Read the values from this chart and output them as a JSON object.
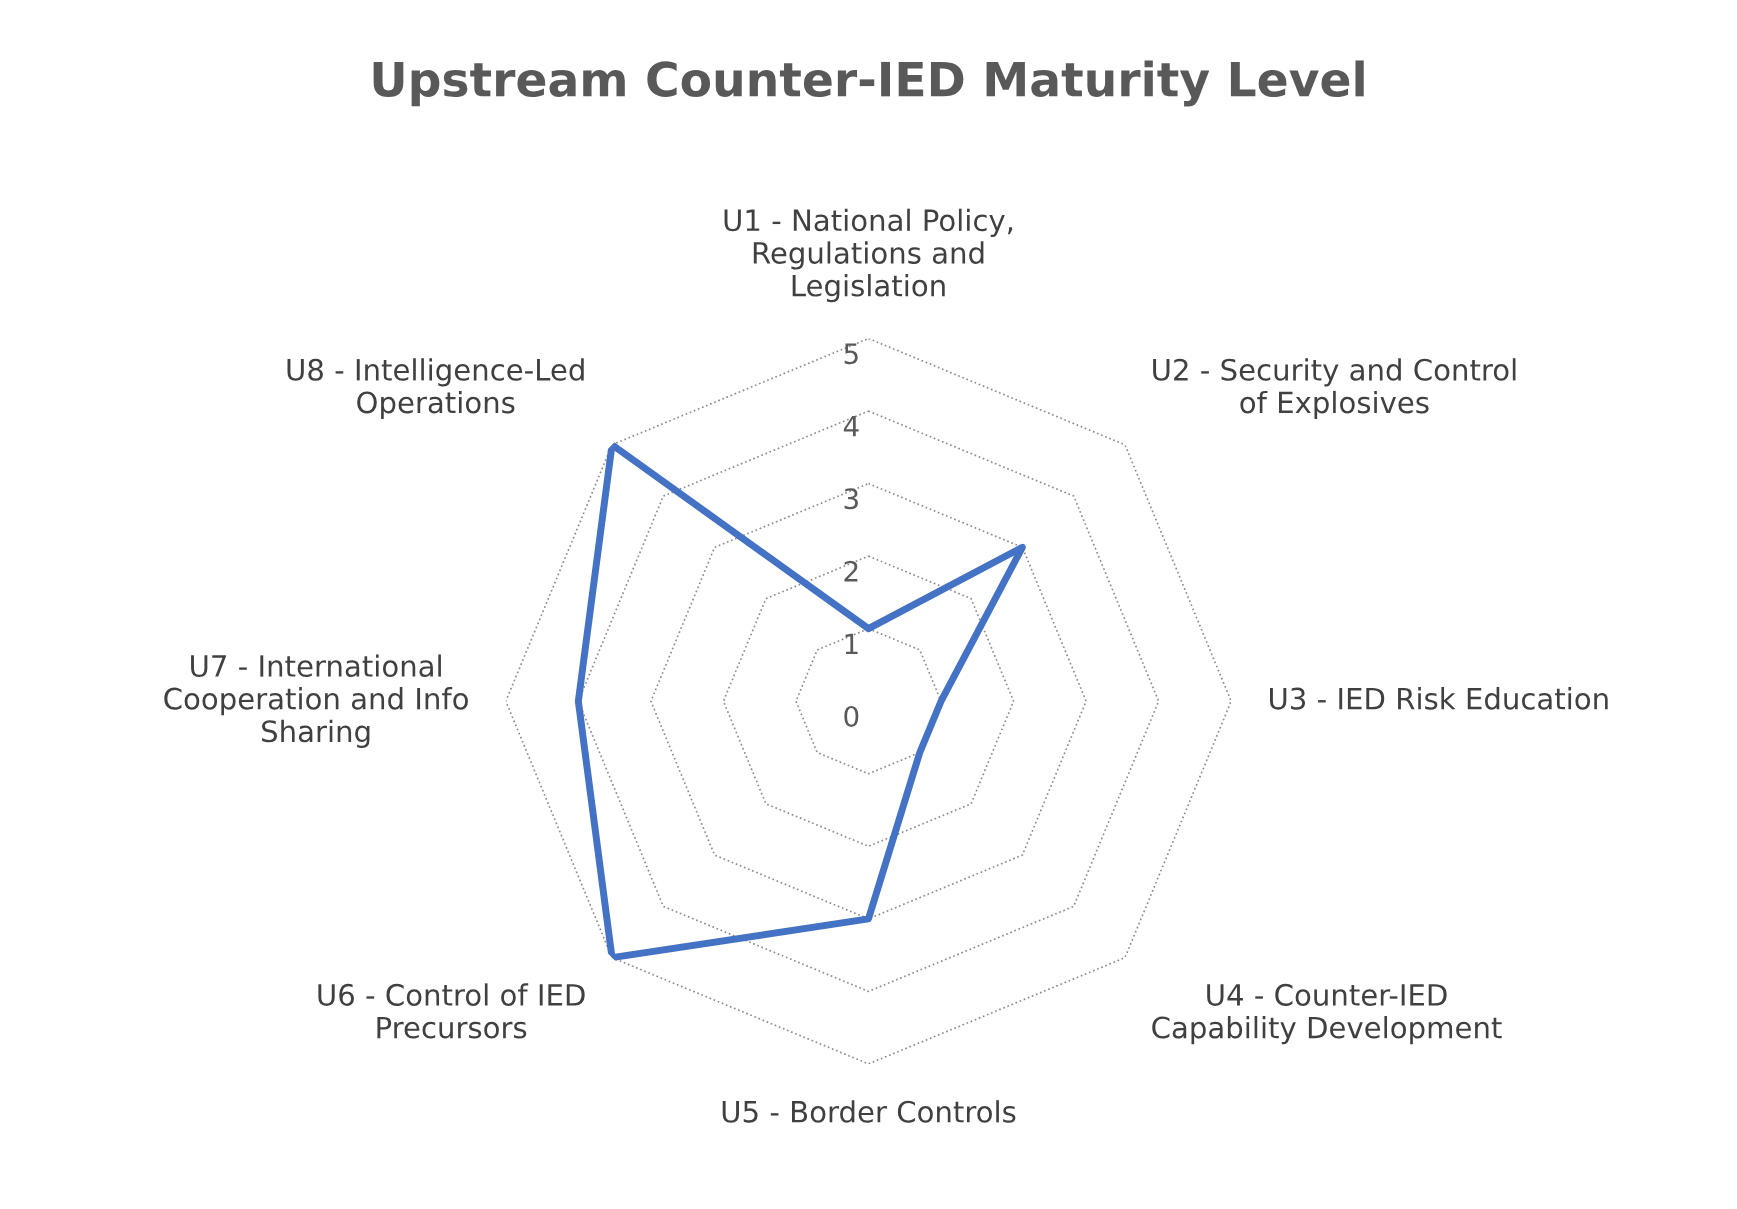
{
  "chart_data": {
    "type": "radar",
    "title": "Upstream Counter-IED Maturity Level",
    "categories": [
      "U1 - National Policy,\nRegulations and\nLegislation",
      "U2 - Security and Control\nof Explosives",
      "U3 - IED Risk Education",
      "U4 - Counter-IED\nCapability Development",
      "U5 - Border Controls",
      "U6 - Control of IED\nPrecursors",
      "U7 - International\nCooperation and Info\nSharing",
      "U8 - Intelligence-Led\nOperations"
    ],
    "series": [
      {
        "color": "#4472c4",
        "values": [
          1,
          3,
          1,
          1,
          3,
          5,
          4,
          5
        ]
      }
    ],
    "ylim": [
      0,
      5
    ],
    "yticks": [
      0,
      1,
      2,
      3,
      4,
      5
    ],
    "grid": true,
    "legend": false,
    "marker": "none",
    "line_style": "solid"
  }
}
